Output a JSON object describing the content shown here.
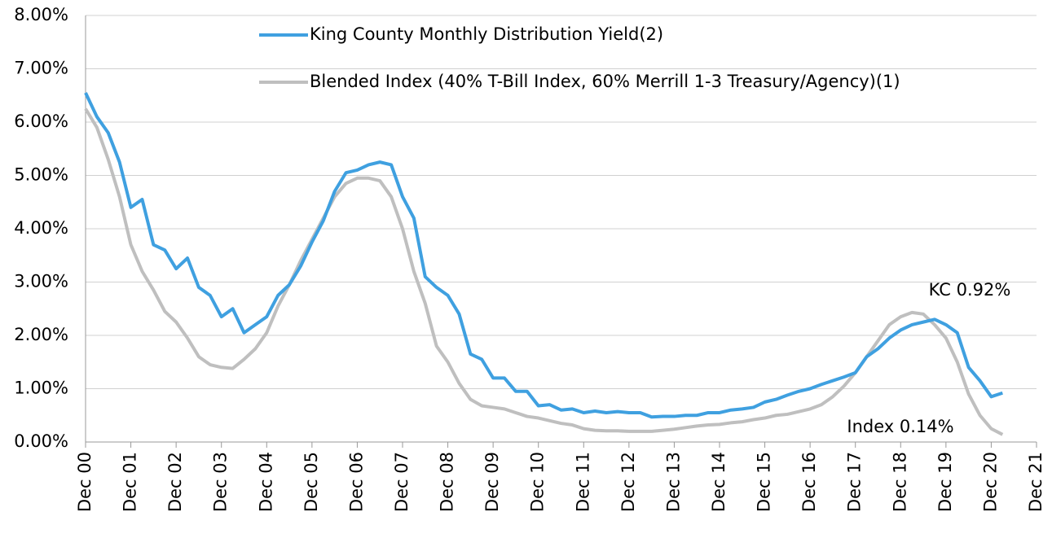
{
  "chart_data": {
    "type": "line",
    "x": [
      0,
      0.25,
      0.5,
      0.75,
      1,
      1.25,
      1.5,
      1.75,
      2,
      2.25,
      2.5,
      2.75,
      3,
      3.25,
      3.5,
      3.75,
      4,
      4.25,
      4.5,
      4.75,
      5,
      5.25,
      5.5,
      5.75,
      6,
      6.25,
      6.5,
      6.75,
      7,
      7.25,
      7.5,
      7.75,
      8,
      8.25,
      8.5,
      8.75,
      9,
      9.25,
      9.5,
      9.75,
      10,
      10.25,
      10.5,
      10.75,
      11,
      11.25,
      11.5,
      11.75,
      12,
      12.25,
      12.5,
      12.75,
      13,
      13.25,
      13.5,
      13.75,
      14,
      14.25,
      14.5,
      14.75,
      15,
      15.25,
      15.5,
      15.75,
      16,
      16.25,
      16.5,
      16.75,
      17,
      17.25,
      17.5,
      17.75,
      18,
      18.25,
      18.5,
      18.75,
      19,
      19.25,
      19.5,
      19.75,
      20,
      20.25
    ],
    "series": [
      {
        "name": "King County Monthly Distribution Yield(2)",
        "color": "#3fa0e0",
        "values": [
          6.55,
          6.1,
          5.8,
          5.25,
          4.4,
          4.55,
          3.7,
          3.6,
          3.25,
          3.45,
          2.9,
          2.75,
          2.35,
          2.5,
          2.05,
          2.2,
          2.35,
          2.75,
          2.95,
          3.3,
          3.75,
          4.15,
          4.7,
          5.05,
          5.1,
          5.2,
          5.25,
          5.2,
          4.6,
          4.2,
          3.1,
          2.9,
          2.75,
          2.4,
          1.65,
          1.55,
          1.2,
          1.2,
          0.95,
          0.95,
          0.68,
          0.7,
          0.6,
          0.62,
          0.55,
          0.58,
          0.55,
          0.57,
          0.55,
          0.55,
          0.47,
          0.48,
          0.48,
          0.5,
          0.5,
          0.55,
          0.55,
          0.6,
          0.62,
          0.65,
          0.75,
          0.8,
          0.88,
          0.95,
          1.0,
          1.08,
          1.15,
          1.22,
          1.3,
          1.6,
          1.75,
          1.95,
          2.1,
          2.2,
          2.25,
          2.3,
          2.2,
          2.05,
          1.4,
          1.15,
          0.85,
          0.92
        ]
      },
      {
        "name": "Blended Index (40% T-Bill Index, 60% Merrill 1-3 Treasury/Agency)(1)",
        "color": "#bfbfbf",
        "values": [
          6.25,
          5.9,
          5.3,
          4.6,
          3.7,
          3.2,
          2.85,
          2.45,
          2.25,
          1.95,
          1.6,
          1.45,
          1.4,
          1.38,
          1.55,
          1.75,
          2.05,
          2.55,
          2.95,
          3.4,
          3.8,
          4.2,
          4.6,
          4.85,
          4.95,
          4.95,
          4.9,
          4.6,
          4.0,
          3.2,
          2.6,
          1.8,
          1.5,
          1.1,
          0.8,
          0.68,
          0.65,
          0.62,
          0.55,
          0.48,
          0.45,
          0.4,
          0.35,
          0.32,
          0.25,
          0.22,
          0.21,
          0.21,
          0.2,
          0.2,
          0.2,
          0.22,
          0.24,
          0.27,
          0.3,
          0.32,
          0.33,
          0.36,
          0.38,
          0.42,
          0.45,
          0.5,
          0.52,
          0.57,
          0.62,
          0.7,
          0.85,
          1.05,
          1.3,
          1.6,
          1.9,
          2.2,
          2.35,
          2.43,
          2.4,
          2.2,
          1.95,
          1.5,
          0.9,
          0.5,
          0.25,
          0.14
        ]
      }
    ],
    "xlim": [
      0,
      21
    ],
    "xticks": [
      {
        "value": 0,
        "label": "Dec 00"
      },
      {
        "value": 1,
        "label": "Dec 01"
      },
      {
        "value": 2,
        "label": "Dec 02"
      },
      {
        "value": 3,
        "label": "Dec 03"
      },
      {
        "value": 4,
        "label": "Dec 04"
      },
      {
        "value": 5,
        "label": "Dec 05"
      },
      {
        "value": 6,
        "label": "Dec 06"
      },
      {
        "value": 7,
        "label": "Dec 07"
      },
      {
        "value": 8,
        "label": "Dec 08"
      },
      {
        "value": 9,
        "label": "Dec 09"
      },
      {
        "value": 10,
        "label": "Dec 10"
      },
      {
        "value": 11,
        "label": "Dec 11"
      },
      {
        "value": 12,
        "label": "Dec 12"
      },
      {
        "value": 13,
        "label": "Dec 13"
      },
      {
        "value": 14,
        "label": "Dec 14"
      },
      {
        "value": 15,
        "label": "Dec 15"
      },
      {
        "value": 16,
        "label": "Dec 16"
      },
      {
        "value": 17,
        "label": "Dec 17"
      },
      {
        "value": 18,
        "label": "Dec 18"
      },
      {
        "value": 19,
        "label": "Dec 19"
      },
      {
        "value": 20,
        "label": "Dec 20"
      },
      {
        "value": 21,
        "label": "Dec 21"
      }
    ],
    "ylim": [
      0,
      8
    ],
    "yticks": [
      {
        "value": 0,
        "label": "0.00%"
      },
      {
        "value": 1,
        "label": "1.00%"
      },
      {
        "value": 2,
        "label": "2.00%"
      },
      {
        "value": 3,
        "label": "3.00%"
      },
      {
        "value": 4,
        "label": "4.00%"
      },
      {
        "value": 5,
        "label": "5.00%"
      },
      {
        "value": 6,
        "label": "6.00%"
      },
      {
        "value": 7,
        "label": "7.00%"
      },
      {
        "value": 8,
        "label": "8.00%"
      }
    ],
    "grid": true,
    "annotations": [
      "KC 0.92%",
      "Index 0.14%"
    ]
  }
}
